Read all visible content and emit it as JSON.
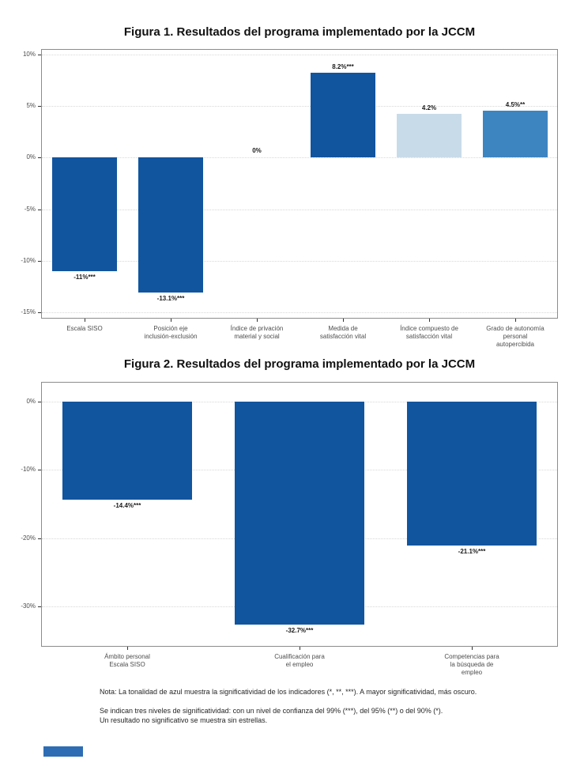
{
  "document": {
    "notes": {
      "nota": "Nota: La tonalidad de azul muestra la significatividad de los indicadores (*, **, ***). A mayor significatividad, más oscuro.",
      "sig_line1": "Se indican tres niveles de significatividad: con un nivel de confianza del 99% (***), del 95% (**) o del 90% (*).",
      "sig_line2": "Un resultado no significativo se muestra sin estrellas."
    },
    "footer": {
      "logo_color": "#2E6DB4"
    }
  },
  "colors": {
    "dark_blue": "#11559E",
    "medium_blue": "#3D85C1",
    "light_blue": "#C8DBE9",
    "grid": "#D8D8D8",
    "panel_border": "#8C8C8C",
    "axis_text": "#4D4D4D",
    "label_text": "#1A1A1A"
  },
  "chart_data": [
    {
      "type": "bar",
      "title": "Figura 1. Resultados del programa implementado por la JCCM",
      "categories": [
        "Escala SISO",
        "Posición eje\ninclusión-exclusión",
        "Índice de privación\nmaterial y social",
        "Medida de\nsatisfacción vital",
        "Índice compuesto de\nsatisfacción vital",
        "Grado de autonomía\npersonal\nautopercibida"
      ],
      "values": [
        -11,
        -13.1,
        0,
        8.2,
        4.2,
        4.5
      ],
      "bar_labels": [
        "-11%***",
        "-13.1%***",
        "0%",
        "8.2%***",
        "4.2%",
        "4.5%**"
      ],
      "significance": [
        "***",
        "***",
        "",
        "***",
        "",
        "**"
      ],
      "bar_color_keys": [
        "dark_blue",
        "dark_blue",
        null,
        "dark_blue",
        "light_blue",
        "medium_blue"
      ],
      "xlabel": "",
      "ylabel": "",
      "ylim": [
        -15.6,
        10.5
      ],
      "yticks": [
        10,
        5,
        0,
        -5,
        -10,
        -15
      ],
      "ytick_labels": [
        "10%",
        "5%",
        "0%",
        "-5%",
        "-10%",
        "-15%"
      ],
      "grid": "dotted-horizontal-majors",
      "legend": "none"
    },
    {
      "type": "bar",
      "title": "Figura 2. Resultados del programa implementado por la JCCM",
      "categories": [
        "Ámbito personal\nEscala SISO",
        "Cualificación para\nel empleo",
        "Competencias para\nla búsqueda de\nempleo"
      ],
      "values": [
        -14.4,
        -32.7,
        -21.1
      ],
      "bar_labels": [
        "-14.4%***",
        "-32.7%***",
        "-21.1%***"
      ],
      "significance": [
        "***",
        "***",
        "***"
      ],
      "bar_color_keys": [
        "dark_blue",
        "dark_blue",
        "dark_blue"
      ],
      "xlabel": "",
      "ylabel": "",
      "ylim": [
        -35.9,
        2.9
      ],
      "yticks": [
        0,
        -10,
        -20,
        -30
      ],
      "ytick_labels": [
        "0%",
        "-10%",
        "-20%",
        "-30%"
      ],
      "grid": "dotted-horizontal-majors",
      "legend": "none"
    }
  ]
}
